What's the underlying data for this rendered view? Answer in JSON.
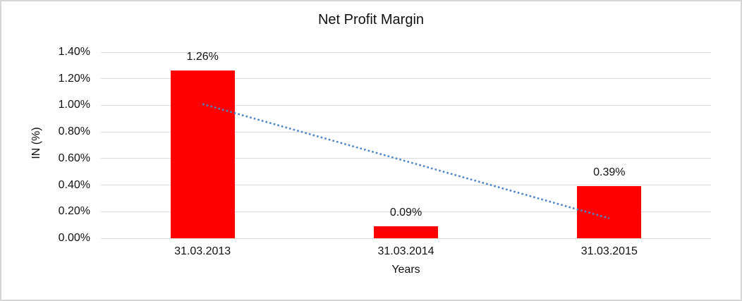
{
  "window": {
    "background": "#ffffff",
    "border_color": "#d6d6d6"
  },
  "chart_data": {
    "type": "bar",
    "title": "Net Profit Margin",
    "xlabel": "Years",
    "ylabel": "IN (%)",
    "categories": [
      "31.03.2013",
      "31.03.2014",
      "31.03.2015"
    ],
    "values": [
      1.26,
      0.09,
      0.39
    ],
    "data_labels": [
      "1.26%",
      "0.09%",
      "0.39%"
    ],
    "y_ticks": [
      "0.00%",
      "0.20%",
      "0.40%",
      "0.60%",
      "0.80%",
      "1.00%",
      "1.20%",
      "1.40%"
    ],
    "ylim": [
      0,
      1.4
    ],
    "grid": true,
    "legend": "none",
    "bar_color": "#ff0000",
    "gridline_color": "#d9d9d9",
    "trendline": {
      "type": "linear",
      "style": "dotted",
      "color": "#4e86c6",
      "points": [
        {
          "category_index": 0,
          "value": 1.01
        },
        {
          "category_index": 2,
          "value": 0.15
        }
      ]
    }
  }
}
